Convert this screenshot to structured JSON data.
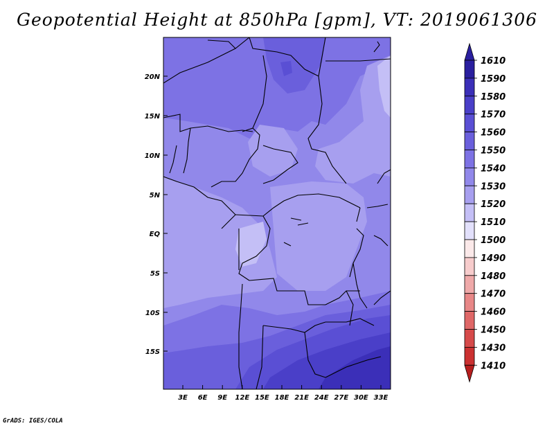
{
  "title": "Geopotential Height at 850hPa [gpm], VT: 2019061306",
  "credit": "GrADS: IGES/COLA",
  "map": {
    "lat_labels": [
      "20N",
      "15N",
      "10N",
      "5N",
      "EQ",
      "5S",
      "10S",
      "15S"
    ],
    "lon_labels": [
      "3E",
      "6E",
      "9E",
      "12E",
      "15E",
      "18E",
      "21E",
      "24E",
      "27E",
      "30E",
      "33E"
    ]
  },
  "colorbar": {
    "levels": [
      "1610",
      "1590",
      "1580",
      "1570",
      "1560",
      "1550",
      "1540",
      "1530",
      "1520",
      "1510",
      "1500",
      "1490",
      "1480",
      "1470",
      "1460",
      "1450",
      "1430",
      "1410"
    ],
    "colors": [
      "#2a1f9f",
      "#3b2fb8",
      "#4a3fc8",
      "#5a4fd4",
      "#6a5fdc",
      "#7d72e4",
      "#9188ea",
      "#a79fef",
      "#c4bff6",
      "#e2e0fb",
      "#fbe9e9",
      "#f7cccc",
      "#efa9a9",
      "#e88787",
      "#df6767",
      "#d64a4a",
      "#cb3131",
      "#b71e1e"
    ],
    "arrows": {
      "top": "#2a1f9f",
      "bottom": "#b71e1e"
    }
  }
}
